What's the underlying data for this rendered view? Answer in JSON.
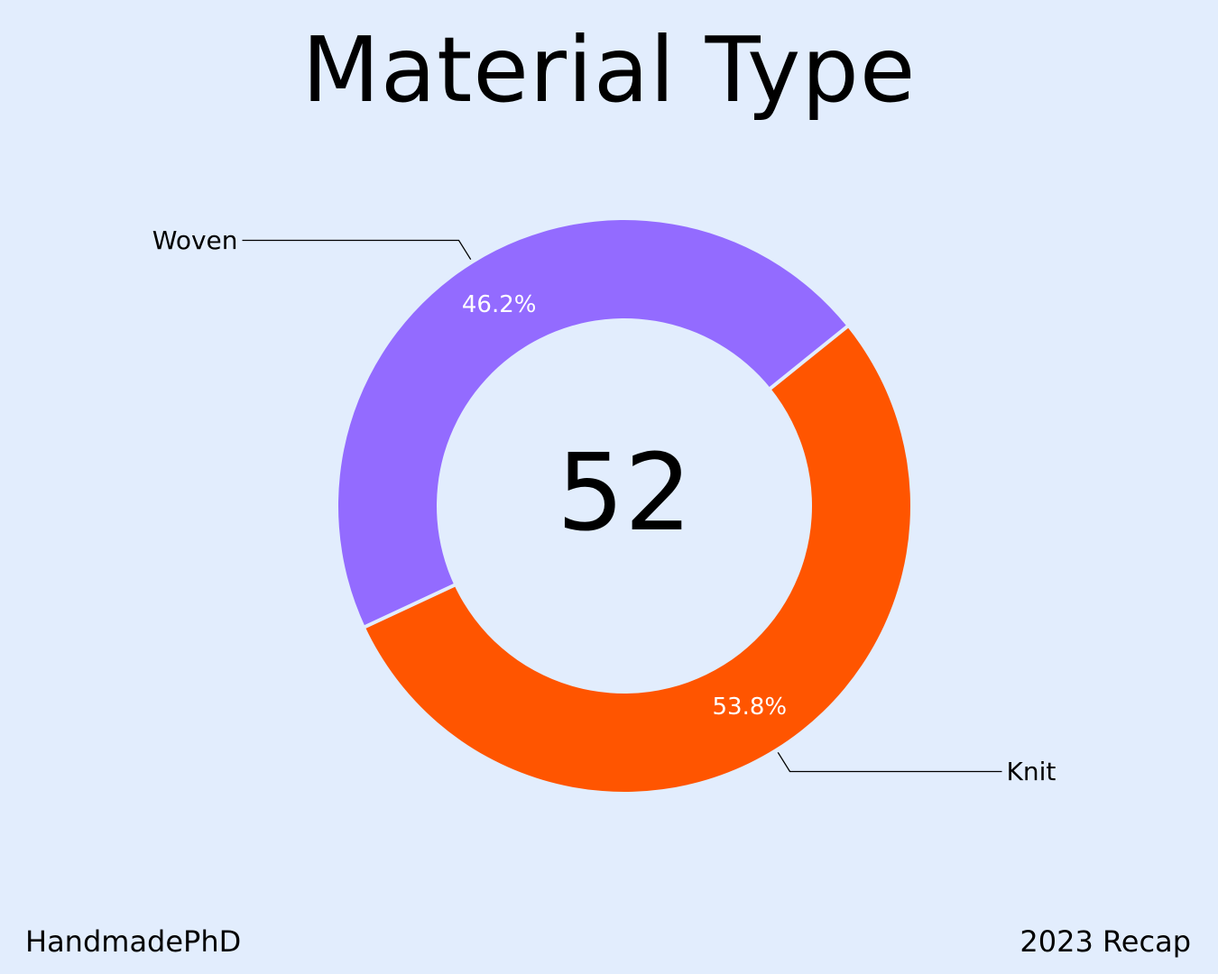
{
  "footer": {
    "brand": "HandmadePhD",
    "period": "2023 Recap"
  },
  "chart_data": {
    "type": "pie",
    "title": "Material Type",
    "center_label": "52",
    "slices": [
      {
        "name": "Woven",
        "value": 24,
        "percent_label": "46.2%",
        "color": "#936bff"
      },
      {
        "name": "Knit",
        "value": 28,
        "percent_label": "53.8%",
        "color": "#ff5500"
      }
    ],
    "legend": "none"
  },
  "colors": {
    "background": "#e2edfd",
    "text": "#000000",
    "percent_text": "#ffffff"
  }
}
